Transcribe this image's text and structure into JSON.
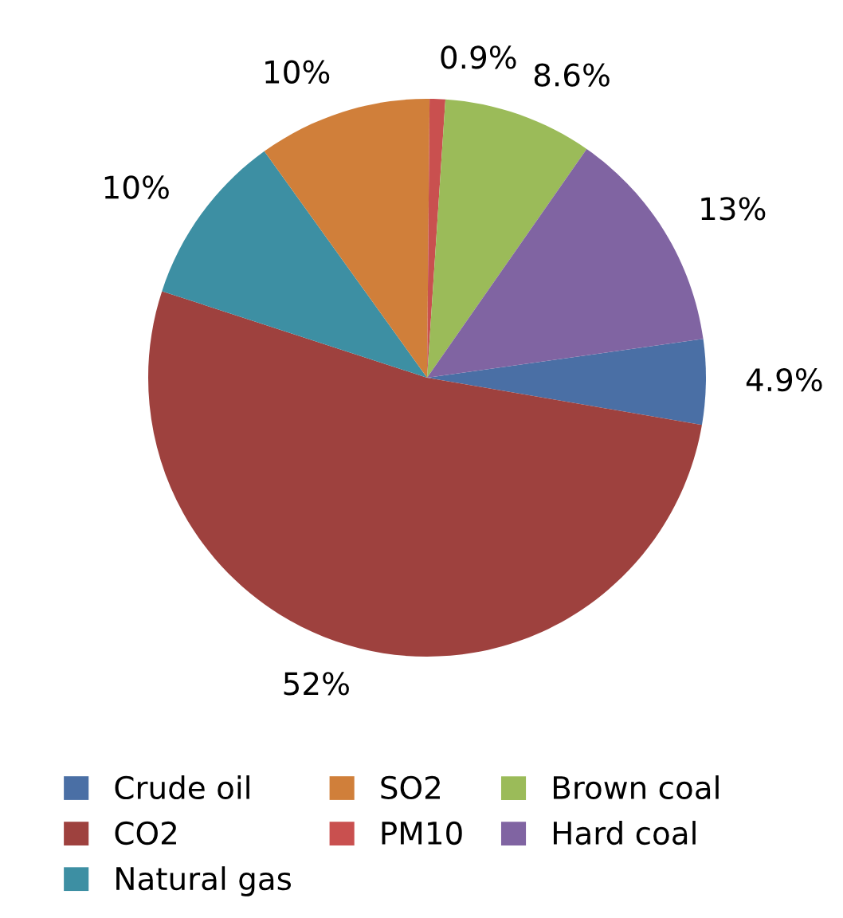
{
  "chart_data": {
    "type": "pie",
    "categories": [
      "Crude oil",
      "CO2",
      "Natural gas",
      "SO2",
      "PM10",
      "Brown coal",
      "Hard coal"
    ],
    "values": [
      4.9,
      52,
      10,
      10,
      0.9,
      8.6,
      13
    ],
    "value_labels": [
      "4.9%",
      "52%",
      "10%",
      "10%",
      "0.9%",
      "8.6%",
      "13%"
    ],
    "colors": [
      "#4a6fa5",
      "#9e413e",
      "#3d8fa3",
      "#d07f3a",
      "#c9504f",
      "#9bbb59",
      "#8064a2"
    ],
    "legend": "bottom"
  }
}
